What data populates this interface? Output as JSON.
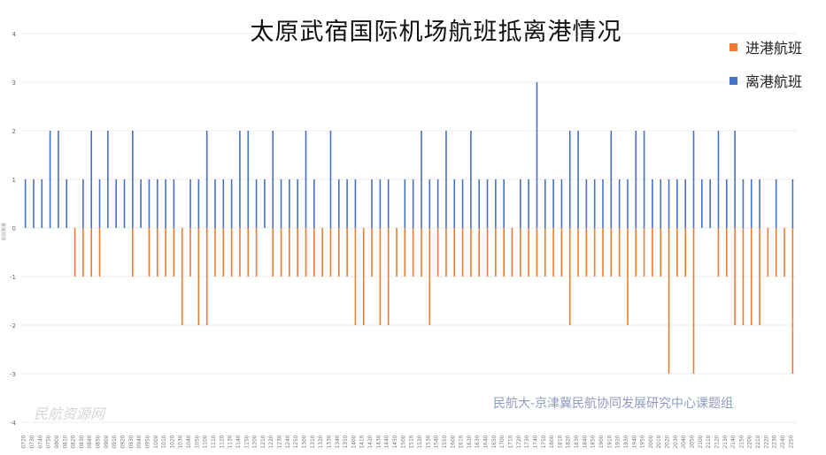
{
  "chart_data": {
    "type": "bar",
    "title": "太原武宿国际机场航班抵离港情况",
    "ylabel": "航班数量",
    "ylim": [
      -4,
      4
    ],
    "yticks": [
      4,
      3,
      2,
      1,
      0,
      -1,
      -2,
      -3,
      -4
    ],
    "grid": true,
    "legend_position": "right",
    "colors": {
      "arrivals": "#ED7D31",
      "departures": "#4472C4"
    },
    "xtick_labels": [
      "0720",
      "0730",
      "0740",
      "0750",
      "0800",
      "0810",
      "0820",
      "0830",
      "0840",
      "0850",
      "0900",
      "0910",
      "0920",
      "0930",
      "0940",
      "0950",
      "1000",
      "1010",
      "1020",
      "1030",
      "1040",
      "1050",
      "1100",
      "1110",
      "1120",
      "1130",
      "1140",
      "1150",
      "1200",
      "1210",
      "1220",
      "1230",
      "1240",
      "1250",
      "1300",
      "1310",
      "1320",
      "1330",
      "1340",
      "1350",
      "1400",
      "1410",
      "1420",
      "1430",
      "1440",
      "1450",
      "1500",
      "1510",
      "1520",
      "1530",
      "1540",
      "1550",
      "1600",
      "1610",
      "1620",
      "1630",
      "1640",
      "1650",
      "1700",
      "1710",
      "1720",
      "1730",
      "1740",
      "1750",
      "1800",
      "1810",
      "1820",
      "1830",
      "1840",
      "1850",
      "1900",
      "1910",
      "1920",
      "1930",
      "1940",
      "1950",
      "2000",
      "2010",
      "2020",
      "2030",
      "2040",
      "2050",
      "2100",
      "2110",
      "2120",
      "2130",
      "2140",
      "2150",
      "2200",
      "2210",
      "2220",
      "2230",
      "2240",
      "2250"
    ],
    "series": [
      {
        "name": "进港航班",
        "values": [
          0,
          0,
          0,
          0,
          0,
          0,
          -1,
          -1,
          -1,
          -1,
          0,
          0,
          0,
          -1,
          0,
          -1,
          -1,
          -1,
          -1,
          -2,
          -1,
          -2,
          -2,
          -1,
          -1,
          -1,
          -1,
          -1,
          -1,
          0,
          -1,
          -1,
          -1,
          -1,
          -1,
          -1,
          -1,
          -1,
          -1,
          -1,
          -2,
          -2,
          -1,
          -2,
          -2,
          -1,
          -1,
          -1,
          -1,
          -2,
          -1,
          -1,
          -1,
          -1,
          -1,
          -1,
          -1,
          -1,
          -1,
          -1,
          -1,
          -1,
          -1,
          -1,
          -1,
          -1,
          -2,
          -1,
          -1,
          -1,
          -1,
          -1,
          -1,
          -2,
          -1,
          -1,
          -1,
          -1,
          -3,
          -1,
          -1,
          -3,
          0,
          0,
          -1,
          -1,
          -2,
          -2,
          -2,
          -2,
          -1,
          -1,
          -1,
          -3
        ]
      },
      {
        "name": "离港航班",
        "values": [
          1,
          1,
          1,
          2,
          2,
          1,
          0,
          1,
          2,
          1,
          2,
          1,
          1,
          2,
          1,
          1,
          1,
          1,
          1,
          0,
          1,
          1,
          2,
          1,
          1,
          1,
          2,
          2,
          1,
          1,
          2,
          1,
          1,
          1,
          2,
          1,
          0,
          2,
          1,
          1,
          1,
          0,
          1,
          1,
          1,
          0,
          1,
          1,
          2,
          1,
          1,
          2,
          1,
          1,
          2,
          1,
          1,
          1,
          1,
          0,
          1,
          1,
          3,
          1,
          1,
          1,
          2,
          2,
          1,
          1,
          1,
          2,
          1,
          1,
          2,
          2,
          1,
          1,
          1,
          1,
          1,
          2,
          1,
          1,
          2,
          1,
          2,
          1,
          1,
          1,
          0,
          1,
          0,
          1
        ]
      }
    ],
    "annotations": [
      "民航大-京津冀民航协同发展研究中心课题组"
    ]
  },
  "legend": {
    "arrivals_label": "进港航班",
    "departures_label": "离港航班"
  },
  "watermark": {
    "credit": "民航大-京津冀民航协同发展研究中心课题组",
    "logo": "民航资源网"
  }
}
